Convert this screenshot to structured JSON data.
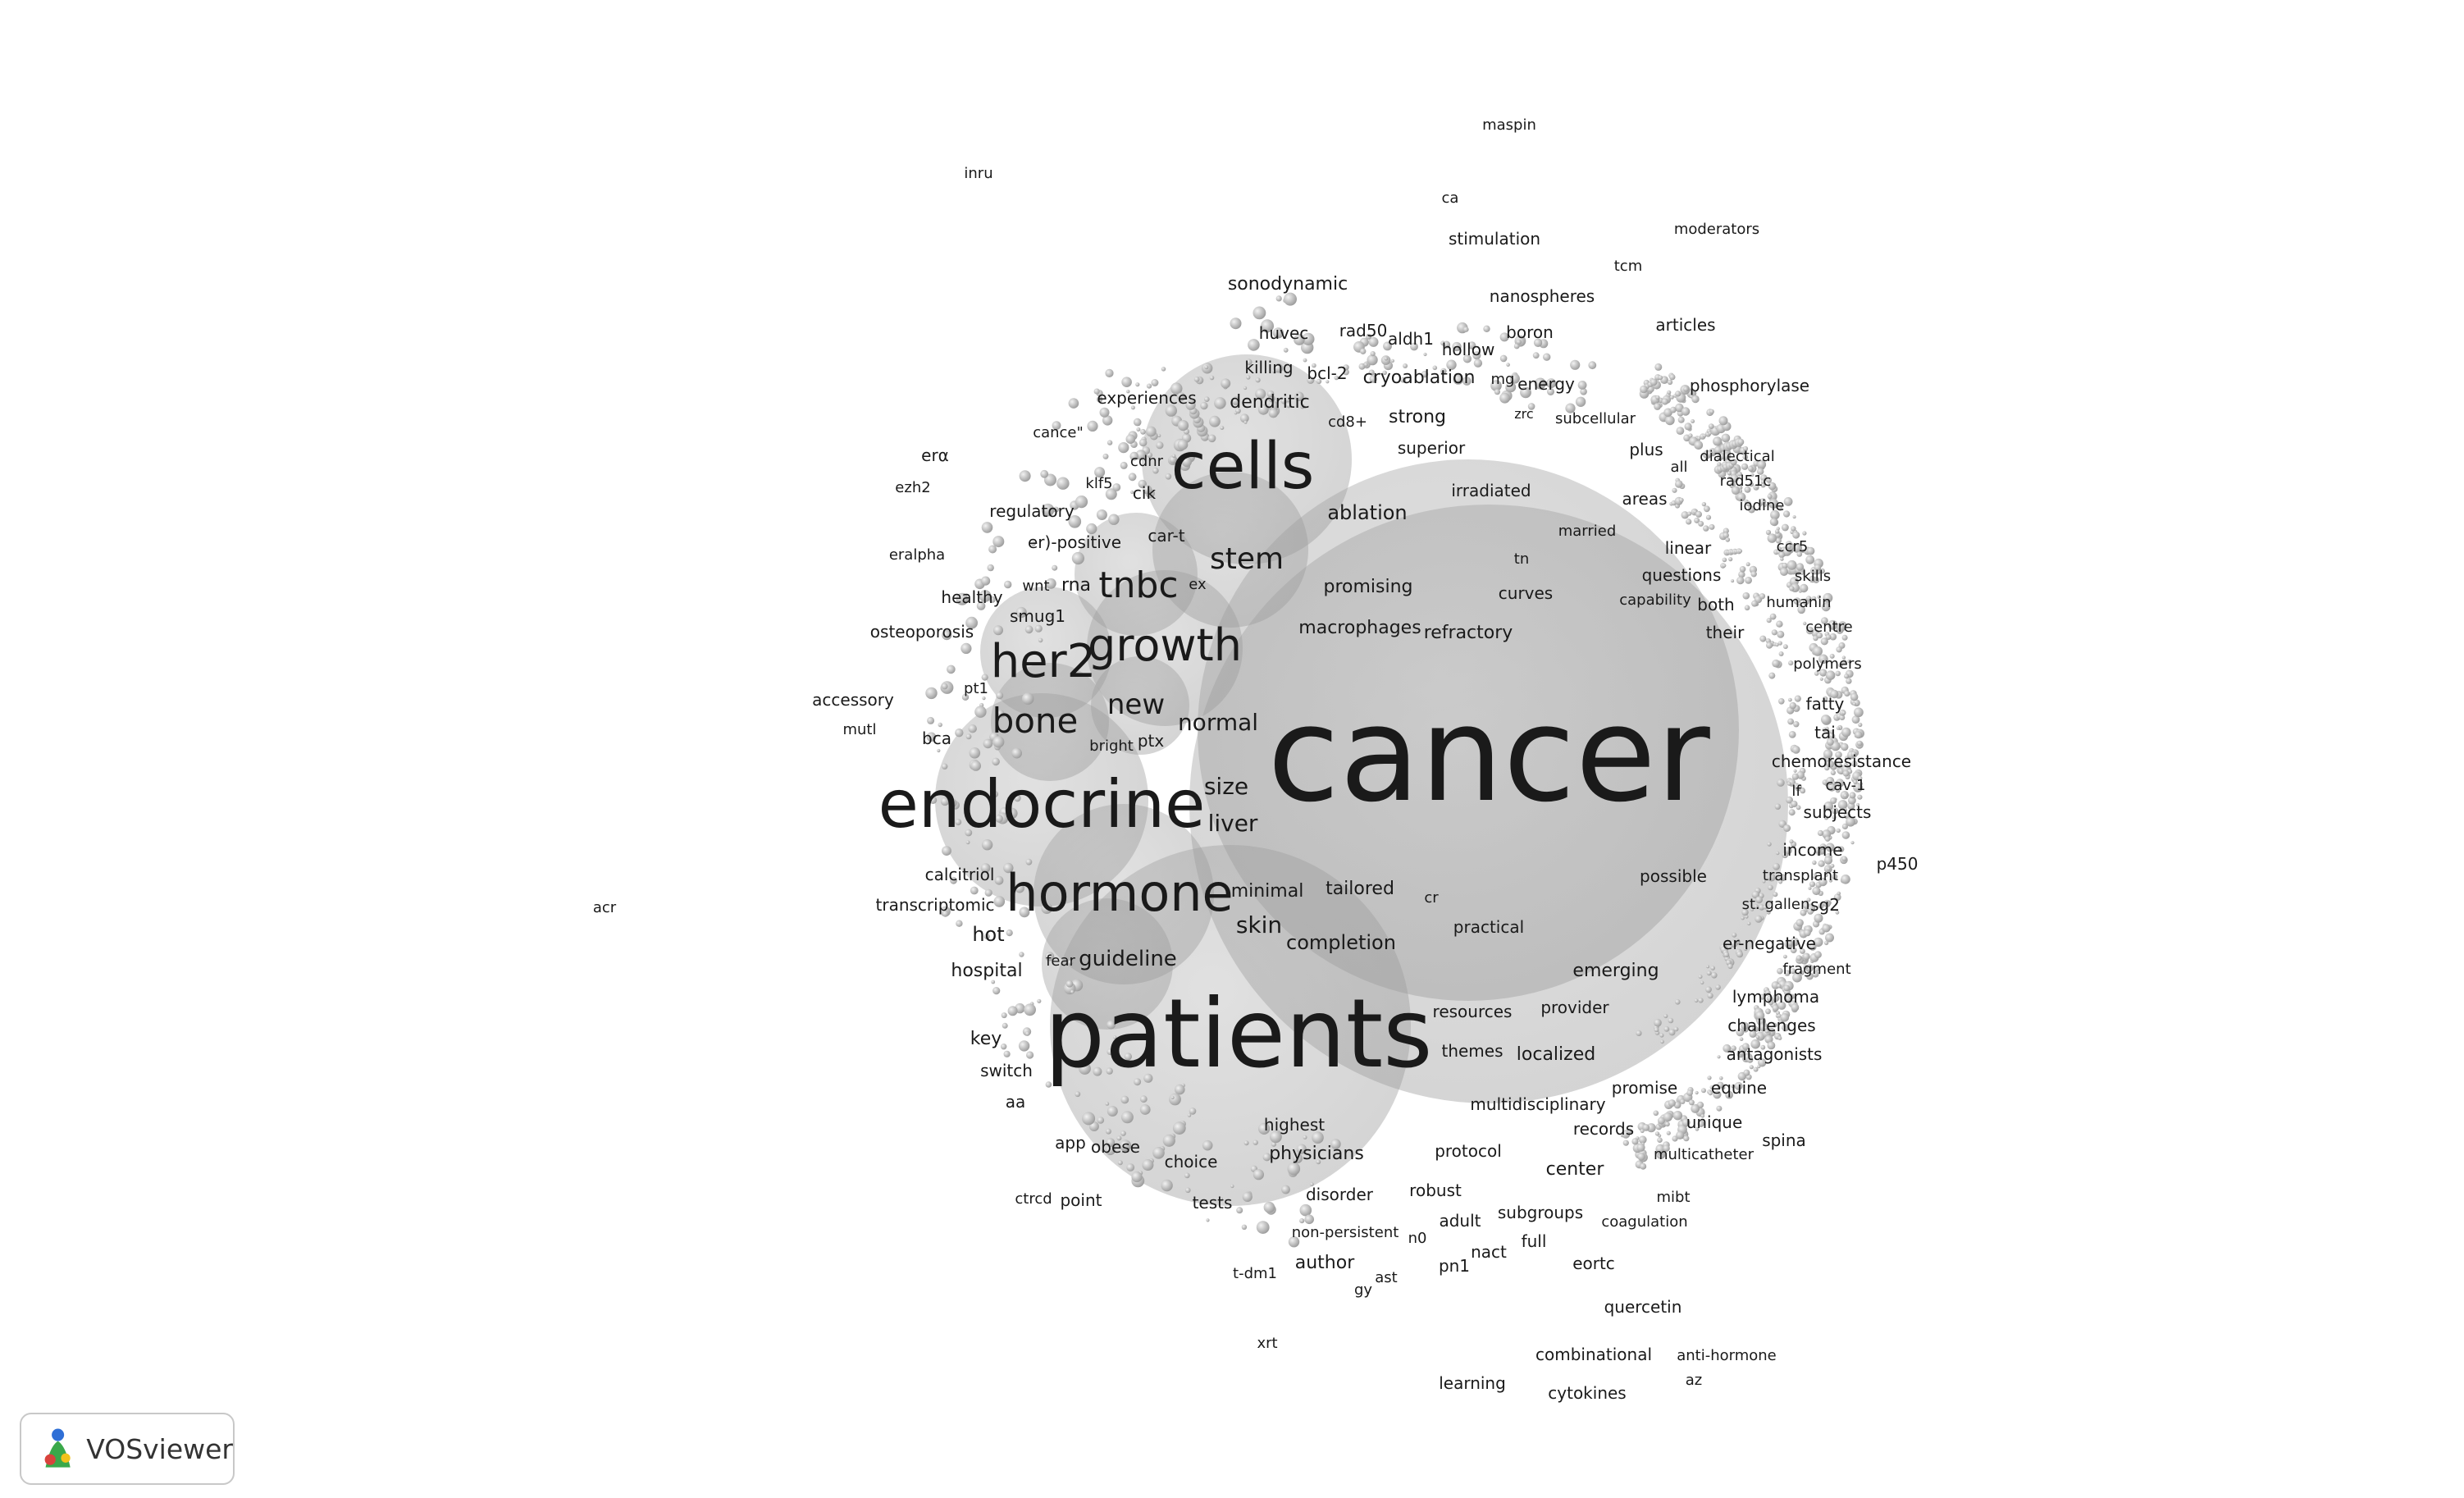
{
  "app": {
    "logo_text": "VOSviewer"
  },
  "colors": {
    "background": "#ffffff",
    "term_text": "#1a1a1a",
    "bubble": "#9a9a9a",
    "logo_blue": "#2f6fd6",
    "logo_green": "#3aa84a",
    "logo_red": "#d9433c",
    "logo_yellow": "#f2c21b"
  },
  "icons": [
    "vosviewer-logo-icon"
  ],
  "terms": {
    "cancer": "cancer",
    "patients": "patients",
    "endocrine": "endocrine",
    "cells": "cells",
    "hormone": "hormone",
    "her2": "her2",
    "growth": "growth",
    "tnbc": "tnbc",
    "bone": "bone",
    "stem": "stem",
    "new": "new",
    "normal": "normal",
    "size": "size",
    "liver": "liver",
    "skin": "skin",
    "guideline": "guideline",
    "completion": "completion",
    "tailored": "tailored",
    "minimal": "minimal",
    "ablation": "ablation",
    "promising": "promising",
    "macrophages": "macrophages",
    "refractory": "refractory",
    "irradiated": "irradiated",
    "sonodynamic": "sonodynamic",
    "huvec": "huvec",
    "rad50": "rad50",
    "aldh1": "aldh1",
    "hollow": "hollow",
    "boron": "boron",
    "killing": "killing",
    "bcl2": "bcl-2",
    "cryoablation": "cryoablation",
    "mg": "mg",
    "energy": "energy",
    "experiences": "experiences",
    "dendritic": "dendritic",
    "strong": "strong",
    "zrc": "zrc",
    "subcellular": "subcellular",
    "cd8": "cd8+",
    "superior": "superior",
    "cancer_quote": "cance\"",
    "cdnr": "cdnr",
    "klf5": "klf5",
    "cik": "cik",
    "car_t": "car-t",
    "regulatory": "regulatory",
    "er_positive": "er)-positive",
    "wnt": "wnt",
    "rna": "rna",
    "ex": "ex",
    "smug1": "smug1",
    "healthy": "healthy",
    "osteoporosis": "osteoporosis",
    "pt1": "pt1",
    "bright": "bright",
    "ptx": "ptx",
    "bca": "bca",
    "accessory": "accessory",
    "mutl": "mutl",
    "eralpha": "eralpha",
    "era": "erα",
    "ezh2": "ezh2",
    "inru": "inru",
    "maspin": "maspin",
    "ca": "ca",
    "stimulation": "stimulation",
    "tcm": "tcm",
    "moderators": "moderators",
    "nanospheres": "nanospheres",
    "articles": "articles",
    "phosphorylase": "phosphorylase",
    "plus": "plus",
    "all": "all",
    "dialectical": "dialectical",
    "rad51c": "rad51c",
    "iodine": "iodine",
    "areas": "areas",
    "married": "married",
    "tn": "tn",
    "linear": "linear",
    "ccr5": "ccr5",
    "questions": "questions",
    "skills": "skills",
    "curves": "curves",
    "capability": "capability",
    "both": "both",
    "humanin": "humanin",
    "centre": "centre",
    "their": "their",
    "polymers": "polymers",
    "fatty": "fatty",
    "tai": "tai",
    "chemoresistance": "chemoresistance",
    "lf": "lf",
    "cav1": "cav-1",
    "subjects": "subjects",
    "income": "income",
    "p450": "p450",
    "possible": "possible",
    "transplant": "transplant",
    "cr": "cr",
    "st_gallen": "st. gallen",
    "sg2": "sg2",
    "practical": "practical",
    "er_negative": "er-negative",
    "fragment": "fragment",
    "emerging": "emerging",
    "lymphoma": "lymphoma",
    "resources": "resources",
    "provider": "provider",
    "challenges": "challenges",
    "themes": "themes",
    "localized": "localized",
    "antagonists": "antagonists",
    "promise": "promise",
    "equine": "equine",
    "multidisciplinary": "multidisciplinary",
    "records": "records",
    "unique": "unique",
    "spina": "spina",
    "multicatheter": "multicatheter",
    "protocol": "protocol",
    "center": "center",
    "mibt": "mibt",
    "robust": "robust",
    "subgroups": "subgroups",
    "coagulation": "coagulation",
    "adult": "adult",
    "full": "full",
    "n0": "n0",
    "nact": "nact",
    "eortc": "eortc",
    "pn1": "pn1",
    "ast": "ast",
    "gy": "gy",
    "quercetin": "quercetin",
    "combinational": "combinational",
    "anti_hormone": "anti-hormone",
    "az": "az",
    "learning": "learning",
    "cytokines": "cytokines",
    "calcitriol": "calcitriol",
    "transcriptomic": "transcriptomic",
    "hot": "hot",
    "hospital": "hospital",
    "fear": "fear",
    "key": "key",
    "switch": "switch",
    "aa": "aa",
    "app": "app",
    "obese": "obese",
    "choice": "choice",
    "highest": "highest",
    "physicians": "physicians",
    "disorder": "disorder",
    "tests": "tests",
    "ctrcd": "ctrcd",
    "point": "point",
    "non_persistent": "non-persistent",
    "author": "author",
    "t_dm1": "t-dm1",
    "xrt": "xrt",
    "acr": "acr"
  }
}
